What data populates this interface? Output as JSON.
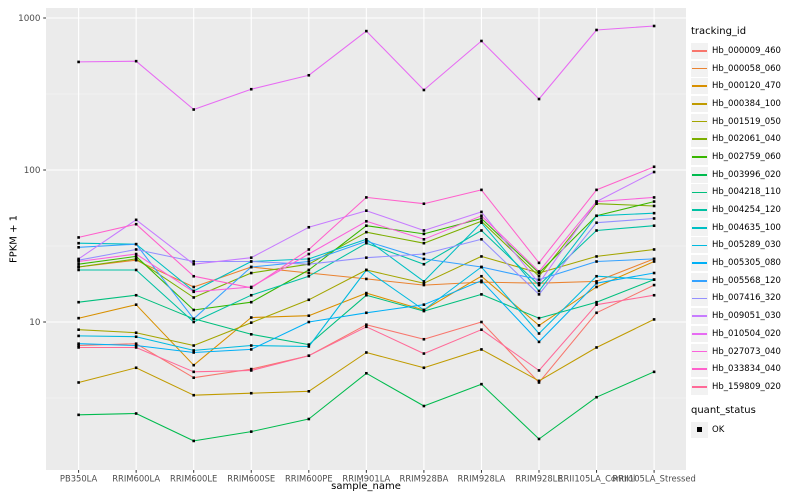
{
  "chart_data": {
    "type": "line",
    "title": "",
    "xlabel": "sample_name",
    "ylabel": "FPKM + 1",
    "y_scale": "log10",
    "grid": "on",
    "legend_position": "right",
    "legend_title": "tracking_id",
    "panel_bg": "#EBEBEB",
    "grid_major_color": "#FFFFFF",
    "grid_minor_color": "#F5F5F5",
    "tick_label_color": "#4D4D4D",
    "tick_mark_color": "#333333",
    "point_color": "#000000",
    "y_tick_values": [
      10,
      100,
      1000
    ],
    "y_minor_values": [
      3.162,
      31.623,
      316.228
    ],
    "categories": [
      "PB350LA",
      "RRIM600LA",
      "RRIM600LE",
      "RRIM600SE",
      "RRIM600PE",
      "RRIM901LA",
      "RRIM928BA",
      "RRIM928LA",
      "RRIM928LE",
      "RRII105LA_Control",
      "RRII105LA_Stressed"
    ],
    "series": [
      {
        "name": "Hb_000009_460",
        "color": "#F8766D",
        "values": [
          7.0,
          7.2,
          4.3,
          4.9,
          6.0,
          9.6,
          7.7,
          10.0,
          4.0,
          11.5,
          17.5
        ]
      },
      {
        "name": "Hb_000058_060",
        "color": "#EA8331",
        "values": [
          23,
          25.5,
          17,
          23,
          21,
          19.2,
          17.5,
          18.3,
          18,
          18.5,
          26
        ]
      },
      {
        "name": "Hb_000120_470",
        "color": "#D89000",
        "values": [
          10.6,
          13,
          5.2,
          10.7,
          11,
          15.5,
          12,
          20,
          9.5,
          17,
          25
        ]
      },
      {
        "name": "Hb_000384_100",
        "color": "#C09B00",
        "values": [
          4.0,
          5.0,
          3.3,
          3.4,
          3.5,
          6.3,
          5.0,
          6.6,
          4.1,
          6.8,
          10.4
        ]
      },
      {
        "name": "Hb_001519_050",
        "color": "#A3A500",
        "values": [
          8.9,
          8.5,
          7.0,
          9.9,
          14,
          22,
          18,
          27,
          21,
          27,
          30
        ]
      },
      {
        "name": "Hb_002061_040",
        "color": "#7CAE00",
        "values": [
          23,
          26,
          14.5,
          21,
          24,
          39,
          33,
          46,
          20,
          60,
          58
        ]
      },
      {
        "name": "Hb_002759_060",
        "color": "#39B600",
        "values": [
          24,
          27,
          12,
          13.5,
          22,
          43,
          38,
          48,
          21,
          50,
          62
        ]
      },
      {
        "name": "Hb_003996_020",
        "color": "#00BB4E",
        "values": [
          2.45,
          2.5,
          1.65,
          1.9,
          2.3,
          4.6,
          2.8,
          3.9,
          1.7,
          3.2,
          4.7
        ]
      },
      {
        "name": "Hb_004218_110",
        "color": "#00BF7D",
        "values": [
          13.5,
          15,
          10.5,
          8.3,
          7.1,
          15,
          11.8,
          15.2,
          10.6,
          13.5,
          19
        ]
      },
      {
        "name": "Hb_004254_120",
        "color": "#00C1A3",
        "values": [
          22,
          22,
          10,
          15,
          20,
          33,
          24,
          40,
          17.5,
          40,
          43
        ]
      },
      {
        "name": "Hb_004635_100",
        "color": "#00BFC4",
        "values": [
          33,
          32.5,
          16,
          25,
          26,
          35,
          18.5,
          45,
          16,
          50,
          52
        ]
      },
      {
        "name": "Hb_005289_030",
        "color": "#00BAE0",
        "values": [
          8.1,
          8.0,
          6.5,
          7.0,
          6.9,
          22,
          12,
          23,
          8.4,
          20,
          19
        ]
      },
      {
        "name": "Hb_005305_080",
        "color": "#00B0F6",
        "values": [
          7.2,
          7.0,
          6.3,
          6.6,
          10,
          11.5,
          13,
          18.7,
          7.4,
          18,
          21
        ]
      },
      {
        "name": "Hb_005568_120",
        "color": "#35A2FF",
        "values": [
          31,
          32.5,
          10.5,
          23,
          25,
          34,
          26,
          23,
          19,
          25,
          26
        ]
      },
      {
        "name": "Hb_007416_320",
        "color": "#9590FF",
        "values": [
          25.5,
          30,
          25,
          25,
          24,
          26.5,
          28,
          35,
          15.2,
          45,
          48
        ]
      },
      {
        "name": "Hb_009051_030",
        "color": "#C77CFF",
        "values": [
          26,
          47,
          24,
          26.5,
          42,
          54,
          40,
          53,
          18,
          62,
          97
        ]
      },
      {
        "name": "Hb_010504_020",
        "color": "#E76BF3",
        "values": [
          514,
          520,
          250,
          340,
          420,
          820,
          336,
          706,
          293,
          834,
          886
        ]
      },
      {
        "name": "Hb_027073_040",
        "color": "#FA62DB",
        "values": [
          25,
          28,
          15.8,
          17,
          28,
          46,
          35,
          50,
          21.5,
          62,
          66
        ]
      },
      {
        "name": "Hb_033834_040",
        "color": "#FF61CC",
        "values": [
          36,
          44,
          20,
          16.8,
          30,
          66,
          60,
          74,
          24.5,
          74,
          105
        ]
      },
      {
        "name": "Hb_159809_020",
        "color": "#FF6A98",
        "values": [
          6.8,
          6.8,
          4.7,
          4.8,
          6.0,
          9.3,
          6.2,
          8.9,
          4.8,
          13,
          15
        ]
      }
    ],
    "quant_legend": {
      "title": "quant_status",
      "items": [
        {
          "label": "OK",
          "shape": "filled-square",
          "color": "#000000"
        }
      ]
    }
  }
}
